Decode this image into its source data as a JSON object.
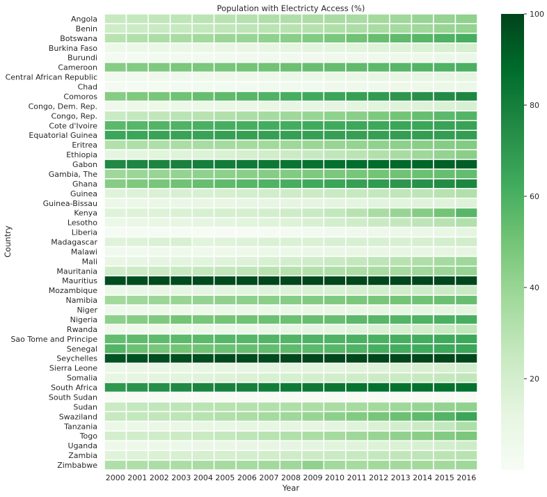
{
  "chart_data": {
    "type": "heatmap",
    "title": "Population with Electricty Access (%)",
    "xlabel": "Year",
    "ylabel": "Country",
    "x": [
      "2000",
      "2001",
      "2002",
      "2003",
      "2004",
      "2005",
      "2006",
      "2007",
      "2008",
      "2009",
      "2010",
      "2011",
      "2012",
      "2013",
      "2014",
      "2015",
      "2016"
    ],
    "y": [
      "Angola",
      "Benin",
      "Botswana",
      "Burkina Faso",
      "Burundi",
      "Cameroon",
      "Central African Republic",
      "Chad",
      "Comoros",
      "Congo, Dem. Rep.",
      "Congo, Rep.",
      "Cote d'Ivoire",
      "Equatorial Guinea",
      "Eritrea",
      "Ethiopia",
      "Gabon",
      "Gambia, The",
      "Ghana",
      "Guinea",
      "Guinea-Bissau",
      "Kenya",
      "Lesotho",
      "Liberia",
      "Madagascar",
      "Malawi",
      "Mali",
      "Mauritania",
      "Mauritius",
      "Mozambique",
      "Namibia",
      "Niger",
      "Nigeria",
      "Rwanda",
      "Sao Tome and Principe",
      "Senegal",
      "Seychelles",
      "Sierra Leone",
      "Somalia",
      "South Africa",
      "South Sudan",
      "Sudan",
      "Swaziland",
      "Tanzania",
      "Togo",
      "Uganda",
      "Zambia",
      "Zimbabwe"
    ],
    "values": [
      [
        25,
        26,
        27,
        28,
        29,
        30,
        31,
        33,
        33,
        34,
        35,
        35,
        37,
        38,
        40,
        41,
        42
      ],
      [
        22,
        23,
        24,
        25,
        26,
        27,
        28,
        29,
        30,
        31,
        33,
        34,
        35,
        36,
        38,
        40,
        41
      ],
      [
        30,
        32,
        34,
        35,
        37,
        39,
        40,
        42,
        44,
        46,
        48,
        51,
        53,
        55,
        57,
        59,
        61
      ],
      [
        7,
        8,
        8,
        9,
        9,
        10,
        10,
        11,
        12,
        13,
        13,
        14,
        15,
        16,
        17,
        18,
        19
      ],
      [
        3,
        3,
        4,
        4,
        4,
        4,
        5,
        5,
        5,
        5,
        6,
        6,
        6,
        7,
        7,
        8,
        8
      ],
      [
        45,
        46,
        47,
        48,
        48,
        49,
        50,
        51,
        52,
        53,
        54,
        55,
        56,
        57,
        58,
        59,
        60
      ],
      [
        5,
        5,
        6,
        6,
        6,
        7,
        7,
        7,
        8,
        8,
        9,
        9,
        10,
        10,
        11,
        11,
        12
      ],
      [
        3,
        3,
        3,
        4,
        4,
        4,
        4,
        5,
        5,
        5,
        6,
        6,
        6,
        7,
        7,
        8,
        8
      ],
      [
        45,
        47,
        49,
        51,
        53,
        55,
        57,
        59,
        61,
        63,
        65,
        67,
        69,
        71,
        73,
        75,
        77
      ],
      [
        6,
        7,
        7,
        8,
        8,
        9,
        9,
        10,
        11,
        11,
        12,
        13,
        14,
        15,
        16,
        17,
        18
      ],
      [
        24,
        26,
        27,
        29,
        30,
        32,
        34,
        36,
        38,
        40,
        42,
        44,
        47,
        50,
        53,
        56,
        58
      ],
      [
        56,
        57,
        58,
        59,
        60,
        61,
        61,
        62,
        62,
        63,
        63,
        64,
        64,
        65,
        65,
        66,
        66
      ],
      [
        65,
        65,
        66,
        66,
        66,
        67,
        67,
        67,
        67,
        67,
        67,
        67,
        67,
        68,
        68,
        68,
        68
      ],
      [
        32,
        33,
        33,
        34,
        35,
        36,
        36,
        37,
        38,
        39,
        40,
        41,
        42,
        43,
        44,
        45,
        46
      ],
      [
        12,
        13,
        14,
        15,
        16,
        17,
        19,
        21,
        23,
        25,
        27,
        29,
        32,
        35,
        38,
        41,
        44
      ],
      [
        76,
        77,
        78,
        79,
        80,
        81,
        82,
        83,
        84,
        85,
        86,
        87,
        88,
        89,
        90,
        91,
        92
      ],
      [
        38,
        39,
        40,
        41,
        42,
        43,
        44,
        45,
        46,
        47,
        48,
        49,
        50,
        51,
        52,
        53,
        54
      ],
      [
        45,
        47,
        49,
        51,
        53,
        55,
        57,
        59,
        61,
        63,
        65,
        67,
        69,
        71,
        73,
        75,
        77
      ],
      [
        15,
        16,
        17,
        18,
        18,
        19,
        20,
        21,
        22,
        23,
        24,
        25,
        26,
        27,
        28,
        30,
        32
      ],
      [
        8,
        8,
        9,
        9,
        10,
        10,
        11,
        11,
        12,
        12,
        13,
        13,
        14,
        14,
        15,
        15,
        16
      ],
      [
        15,
        16,
        16,
        17,
        18,
        19,
        19,
        20,
        22,
        24,
        26,
        30,
        35,
        40,
        45,
        50,
        57
      ],
      [
        8,
        9,
        10,
        11,
        12,
        13,
        14,
        15,
        16,
        18,
        20,
        22,
        24,
        26,
        28,
        30,
        32
      ],
      [
        2,
        2,
        2,
        2,
        1,
        1,
        1,
        2,
        3,
        4,
        5,
        6,
        7,
        8,
        9,
        10,
        12
      ],
      [
        15,
        16,
        17,
        18,
        14,
        15,
        16,
        17,
        17,
        17,
        18,
        18,
        18,
        18,
        19,
        20,
        21
      ],
      [
        5,
        5,
        6,
        6,
        6,
        7,
        7,
        8,
        8,
        9,
        9,
        10,
        10,
        11,
        11,
        12,
        12
      ],
      [
        10,
        11,
        12,
        13,
        14,
        15,
        16,
        18,
        20,
        22,
        24,
        26,
        28,
        30,
        33,
        36,
        38
      ],
      [
        22,
        23,
        24,
        25,
        26,
        27,
        28,
        30,
        31,
        32,
        33,
        34,
        35,
        36,
        38,
        39,
        41
      ],
      [
        97,
        97,
        98,
        98,
        98,
        98,
        98,
        99,
        99,
        99,
        99,
        99,
        99,
        99,
        99,
        99,
        99
      ],
      [
        8,
        9,
        10,
        11,
        12,
        13,
        14,
        15,
        16,
        17,
        18,
        19,
        20,
        21,
        22,
        23,
        24
      ],
      [
        37,
        38,
        39,
        40,
        41,
        42,
        43,
        44,
        45,
        46,
        47,
        48,
        49,
        50,
        51,
        52,
        53
      ],
      [
        6,
        6,
        7,
        7,
        7,
        8,
        8,
        8,
        9,
        9,
        10,
        10,
        11,
        11,
        12,
        12,
        13
      ],
      [
        43,
        45,
        47,
        50,
        49,
        50,
        51,
        52,
        52,
        53,
        53,
        56,
        57,
        58,
        59,
        60,
        61
      ],
      [
        6,
        6,
        7,
        7,
        8,
        8,
        9,
        10,
        11,
        12,
        13,
        15,
        17,
        19,
        21,
        24,
        27
      ],
      [
        54,
        55,
        55,
        56,
        56,
        57,
        57,
        58,
        58,
        59,
        59,
        60,
        60,
        61,
        62,
        63,
        64
      ],
      [
        58,
        52,
        49,
        50,
        51,
        52,
        53,
        54,
        55,
        56,
        57,
        59,
        61,
        62,
        63,
        64,
        65
      ],
      [
        95,
        96,
        97,
        97,
        97,
        98,
        98,
        98,
        99,
        99,
        99,
        99,
        99,
        99,
        99,
        99,
        99
      ],
      [
        9,
        10,
        10,
        11,
        11,
        12,
        12,
        13,
        13,
        14,
        14,
        15,
        16,
        17,
        18,
        19,
        20
      ],
      [
        11,
        12,
        13,
        14,
        15,
        16,
        17,
        18,
        19,
        20,
        21,
        22,
        23,
        24,
        25,
        26,
        27
      ],
      [
        70,
        72,
        74,
        76,
        78,
        79,
        80,
        81,
        82,
        83,
        84,
        85,
        86,
        86,
        86,
        86,
        86
      ],
      [
        1,
        1,
        1,
        1,
        1,
        1,
        1,
        1,
        1,
        1,
        1,
        1,
        1,
        1,
        1,
        1,
        1
      ],
      [
        24,
        26,
        27,
        28,
        29,
        30,
        31,
        32,
        33,
        34,
        35,
        36,
        37,
        38,
        40,
        41,
        42
      ],
      [
        25,
        26,
        27,
        28,
        30,
        32,
        34,
        36,
        38,
        40,
        43,
        46,
        49,
        52,
        55,
        58,
        65
      ],
      [
        8,
        8,
        9,
        9,
        10,
        10,
        11,
        11,
        12,
        12,
        13,
        15,
        17,
        20,
        23,
        26,
        33
      ],
      [
        20,
        21,
        22,
        23,
        24,
        26,
        28,
        30,
        32,
        34,
        36,
        38,
        40,
        42,
        44,
        46,
        48
      ],
      [
        7,
        7,
        8,
        8,
        9,
        9,
        10,
        11,
        12,
        13,
        14,
        15,
        16,
        17,
        18,
        20,
        22
      ],
      [
        15,
        16,
        17,
        18,
        19,
        19,
        20,
        21,
        22,
        23,
        24,
        25,
        26,
        27,
        28,
        29,
        30
      ],
      [
        33,
        33,
        34,
        34,
        35,
        36,
        36,
        37,
        38,
        42,
        37,
        36,
        37,
        37,
        37,
        37,
        38
      ]
    ],
    "colorbar": {
      "min": 0,
      "max": 100,
      "ticks": [
        20,
        40,
        60,
        80,
        100
      ]
    },
    "colormap": {
      "low": "#f7fcf5",
      "high": "#00441b"
    }
  }
}
